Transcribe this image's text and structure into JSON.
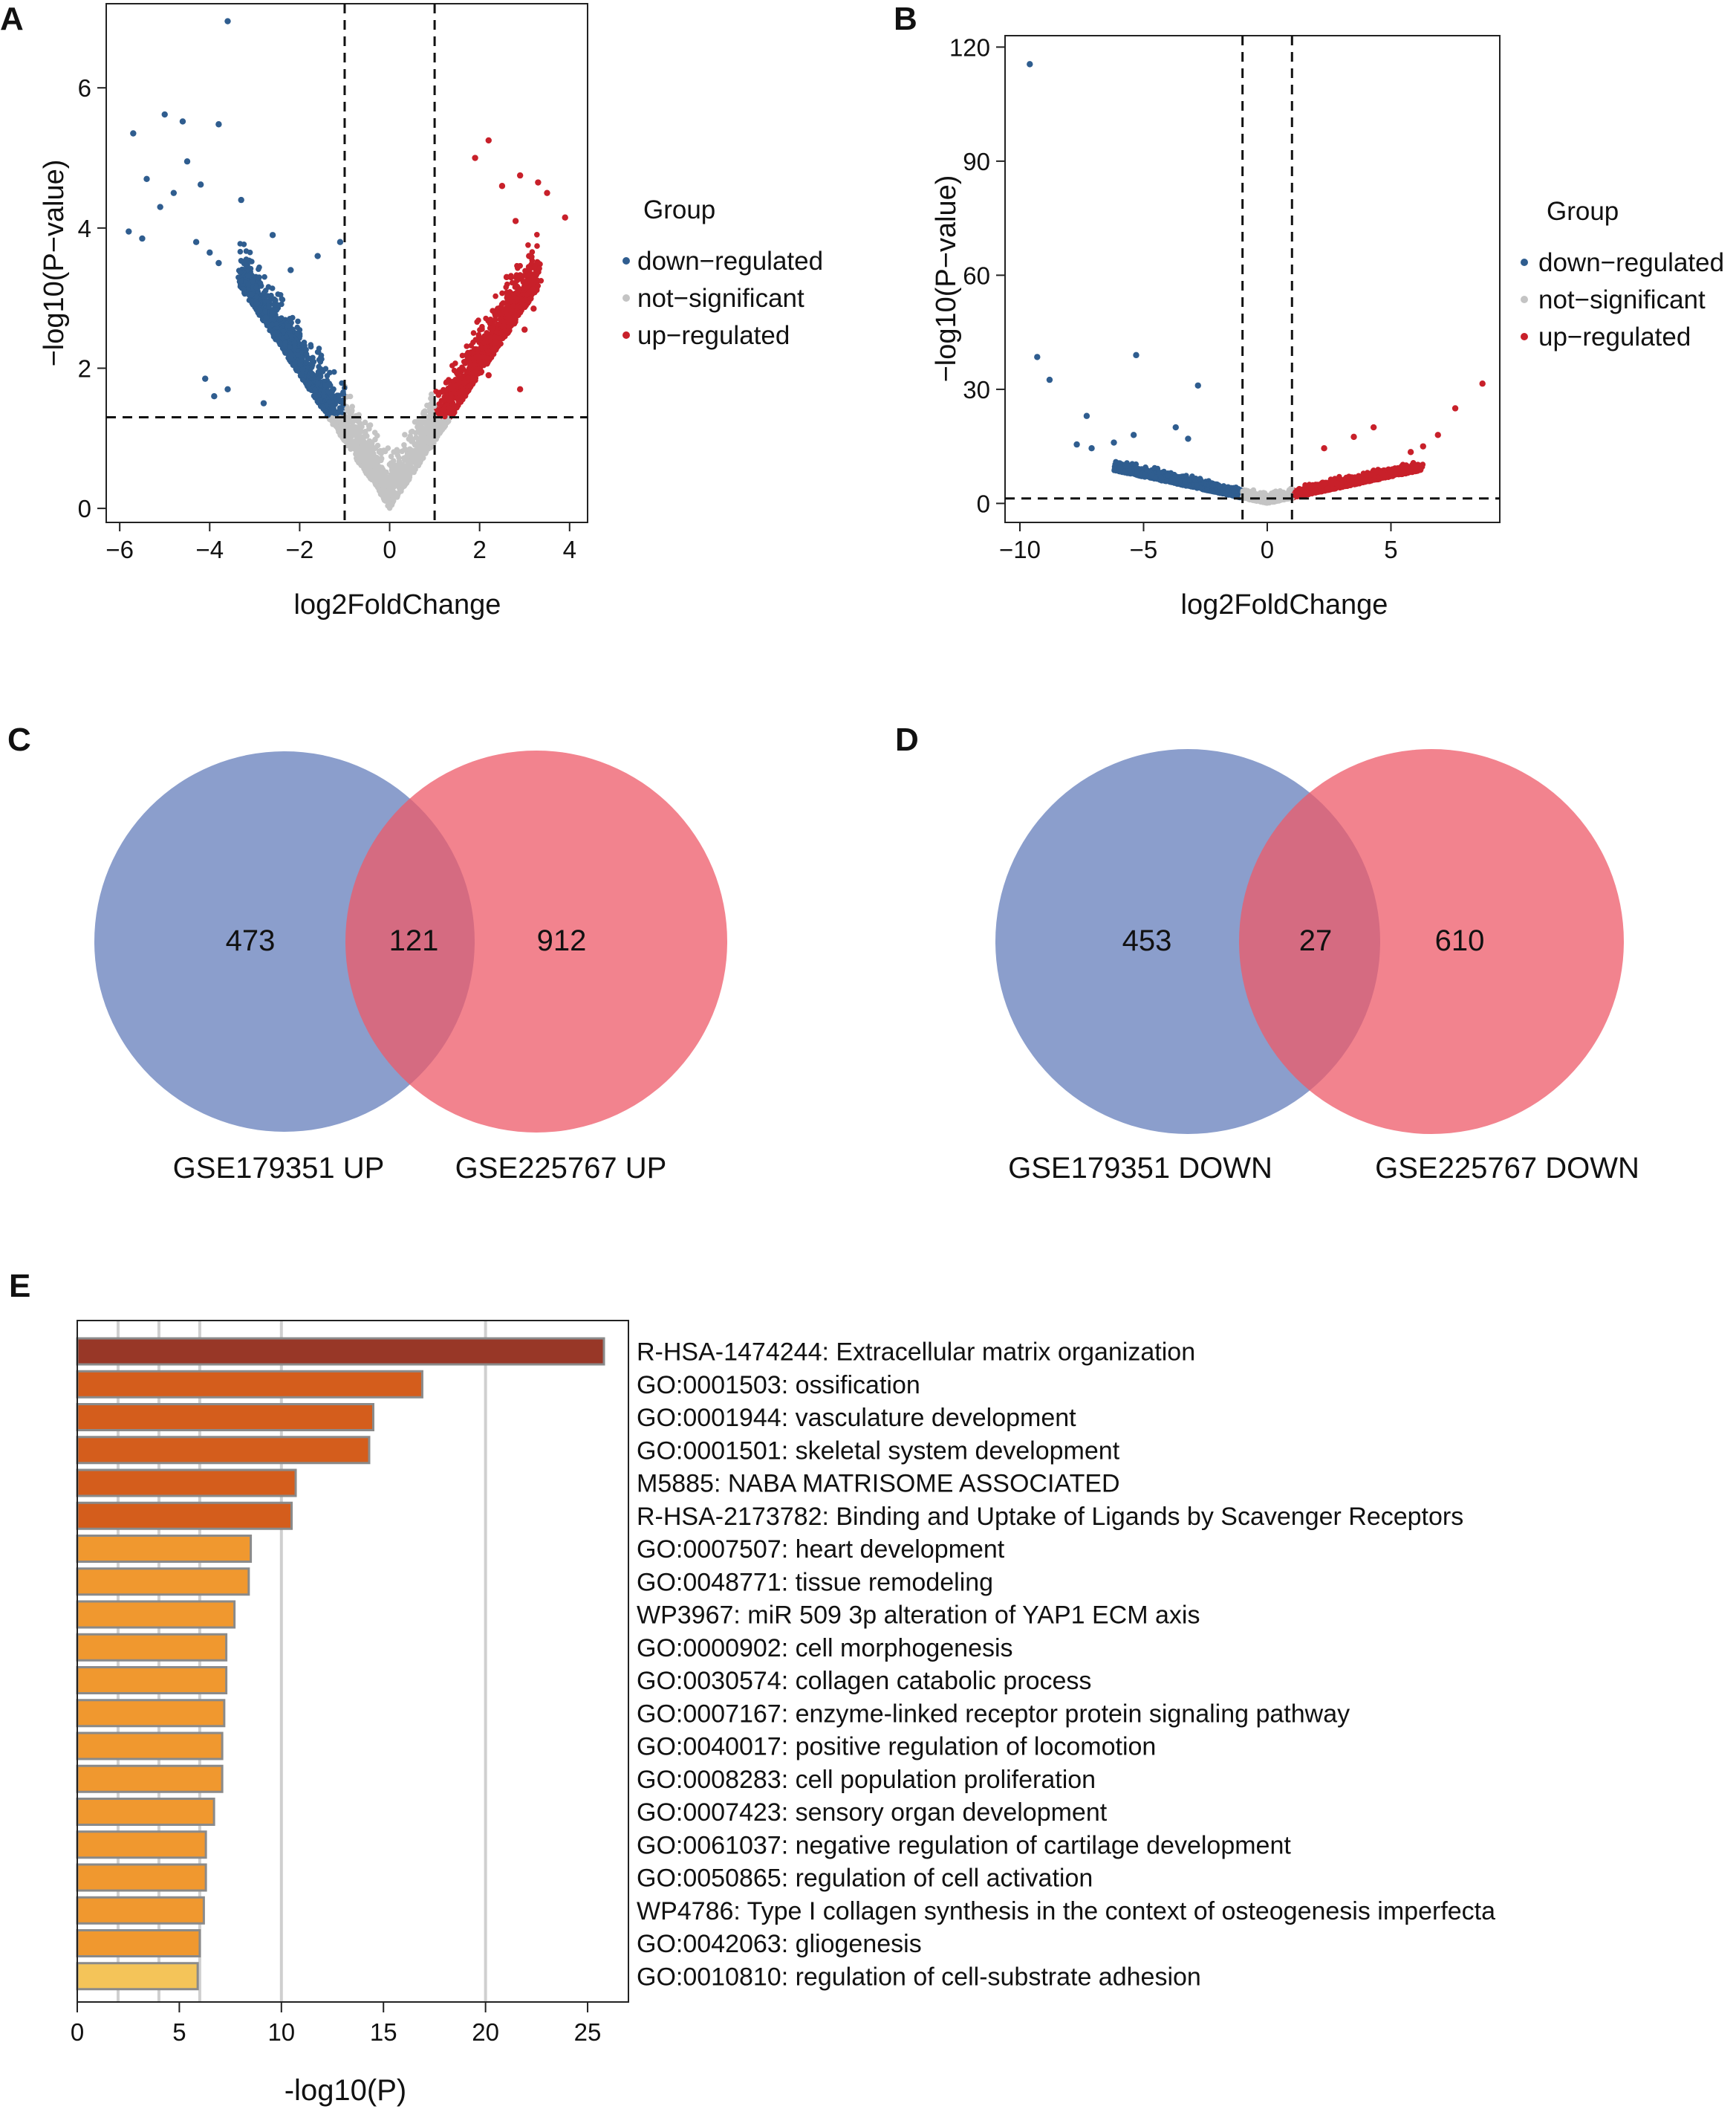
{
  "panels": {
    "A": {
      "letter": "A"
    },
    "B": {
      "letter": "B"
    },
    "C": {
      "letter": "C"
    },
    "D": {
      "letter": "D"
    },
    "E": {
      "letter": "E"
    }
  },
  "colors": {
    "down": "#2f5d8f",
    "not": "#c4c4c4",
    "up": "#c8202a",
    "venn_left": "#6e86bf",
    "venn_right": "#ee5a68",
    "bar_top": "#983727",
    "bar_mid": "#d45d1c",
    "bar_main": "#f0982f",
    "bar_last": "#f4c459",
    "bar_border": "#8a8a8a"
  },
  "chart_data": [
    {
      "id": "A",
      "type": "scatter",
      "title": "",
      "xlabel": "log2FoldChange",
      "ylabel": "−log10(P−value)",
      "xlim": [
        -6.3,
        4.4
      ],
      "ylim": [
        -0.2,
        7.2
      ],
      "xticks": [
        -6,
        -4,
        -2,
        0,
        2,
        4
      ],
      "xtick_labels": [
        "−6",
        "−4",
        "−2",
        "0",
        "2",
        "4"
      ],
      "yticks": [
        0,
        2,
        4,
        6
      ],
      "ytick_labels": [
        "0",
        "2",
        "4",
        "6"
      ],
      "thresholds": {
        "vlines": [
          -1,
          1
        ],
        "hline": 1.3
      },
      "legend": {
        "title": "Group",
        "entries": [
          "down−regulated",
          "not−significant",
          "up−regulated"
        ],
        "position": "right"
      },
      "series": [
        {
          "name": "down-regulated",
          "points": [
            [
              -3.6,
              6.95
            ],
            [
              -5.7,
              5.35
            ],
            [
              -5,
              5.62
            ],
            [
              -4.6,
              5.52
            ],
            [
              -3.8,
              5.48
            ],
            [
              -5.4,
              4.7
            ],
            [
              -4.5,
              4.95
            ],
            [
              -4.8,
              4.5
            ],
            [
              -4.2,
              4.62
            ],
            [
              -5.1,
              4.3
            ],
            [
              -5.8,
              3.95
            ],
            [
              -5.5,
              3.85
            ],
            [
              -3.3,
              4.4
            ],
            [
              -4.3,
              3.8
            ],
            [
              -4.0,
              3.65
            ],
            [
              -2.6,
              3.9
            ],
            [
              -3.8,
              3.5
            ],
            [
              -2.2,
              3.4
            ],
            [
              -1.6,
              3.6
            ],
            [
              -1.1,
              3.8
            ],
            [
              -4.1,
              1.85
            ],
            [
              -3.9,
              1.6
            ],
            [
              -3.6,
              1.7
            ],
            [
              -2.8,
              1.5
            ]
          ]
        },
        {
          "name": "not-significant",
          "points": []
        },
        {
          "name": "up-regulated",
          "points": [
            [
              2.2,
              5.25
            ],
            [
              1.9,
              5.0
            ],
            [
              2.5,
              4.6
            ],
            [
              2.9,
              4.75
            ],
            [
              3.3,
              4.65
            ],
            [
              3.9,
              4.15
            ],
            [
              3.5,
              4.5
            ],
            [
              2.8,
              4.1
            ],
            [
              3.1,
              3.6
            ],
            [
              2.6,
              3.3
            ],
            [
              3.2,
              2.85
            ],
            [
              3.0,
              2.55
            ],
            [
              2.9,
              1.7
            ],
            [
              2.2,
              1.9
            ]
          ]
        }
      ]
    },
    {
      "id": "B",
      "type": "scatter",
      "title": "",
      "xlabel": "log2FoldChange",
      "ylabel": "−log10(P−value)",
      "xlim": [
        -10.6,
        9.4
      ],
      "ylim": [
        -5,
        123
      ],
      "xticks": [
        -10,
        -5,
        0,
        5
      ],
      "xtick_labels": [
        "−10",
        "−5",
        "0",
        "5"
      ],
      "yticks": [
        0,
        30,
        60,
        90,
        120
      ],
      "ytick_labels": [
        "0",
        "30",
        "60",
        "90",
        "120"
      ],
      "thresholds": {
        "vlines": [
          -1,
          1
        ],
        "hline": 1.3
      },
      "legend": {
        "title": "Group",
        "entries": [
          "down−regulated",
          "not−significant",
          "up−regulated"
        ],
        "position": "right"
      },
      "series": [
        {
          "name": "down-regulated",
          "points": [
            [
              -9.6,
              115.5
            ],
            [
              -9.3,
              38.5
            ],
            [
              -8.8,
              32.5
            ],
            [
              -5.3,
              39
            ],
            [
              -2.8,
              31
            ],
            [
              -7.3,
              23
            ],
            [
              -7.7,
              15.5
            ],
            [
              -7.1,
              14.5
            ],
            [
              -6.2,
              16
            ],
            [
              -5.4,
              18
            ],
            [
              -3.7,
              20
            ],
            [
              -3.2,
              17
            ]
          ]
        },
        {
          "name": "not-significant",
          "points": []
        },
        {
          "name": "up-regulated",
          "points": [
            [
              8.7,
              31.5
            ],
            [
              7.6,
              25
            ],
            [
              6.9,
              18
            ],
            [
              6.3,
              15
            ],
            [
              5.8,
              13.5
            ],
            [
              4.3,
              20
            ],
            [
              3.5,
              17.5
            ],
            [
              2.3,
              14.5
            ]
          ]
        }
      ]
    },
    {
      "id": "C",
      "type": "venn",
      "sets": [
        "GSE179351 UP",
        "GSE225767 UP"
      ],
      "counts": {
        "left_only": 473,
        "both": 121,
        "right_only": 912
      }
    },
    {
      "id": "D",
      "type": "venn",
      "sets": [
        "GSE179351 DOWN",
        "GSE225767 DOWN"
      ],
      "counts": {
        "left_only": 453,
        "both": 27,
        "right_only": 610
      }
    },
    {
      "id": "E",
      "type": "bar",
      "orientation": "horizontal",
      "xlabel": "-log10(P)",
      "xlim": [
        0,
        27
      ],
      "xticks": [
        0,
        5,
        10,
        15,
        20,
        25
      ],
      "gridlines": [
        2,
        4,
        6,
        10,
        20
      ],
      "categories": [
        "R-HSA-1474244: Extracellular matrix organization",
        "GO:0001503: ossification",
        "GO:0001944: vasculature development",
        "GO:0001501: skeletal system development",
        "M5885: NABA MATRISOME ASSOCIATED",
        "R-HSA-2173782: Binding and Uptake of Ligands by Scavenger Receptors",
        "GO:0007507: heart development",
        "GO:0048771: tissue remodeling",
        "WP3967: miR 509 3p alteration of YAP1 ECM axis",
        "GO:0000902: cell morphogenesis",
        "GO:0030574: collagen catabolic process",
        "GO:0007167: enzyme-linked receptor protein signaling pathway",
        "GO:0040017: positive regulation of locomotion",
        "GO:0008283: cell population proliferation",
        "GO:0007423: sensory organ development",
        "GO:0061037: negative regulation of cartilage development",
        "GO:0050865: regulation of cell activation",
        "WP4786: Type I collagen synthesis in the context of osteogenesis imperfecta",
        "GO:0042063: gliogenesis",
        "GO:0010810: regulation of cell-substrate adhesion"
      ],
      "values": [
        25.8,
        16.9,
        14.5,
        14.3,
        10.7,
        10.5,
        8.5,
        8.4,
        7.7,
        7.3,
        7.3,
        7.2,
        7.1,
        7.1,
        6.7,
        6.3,
        6.3,
        6.2,
        6.0,
        5.9
      ],
      "color_groups": [
        "top",
        "mid",
        "mid",
        "mid",
        "mid",
        "mid",
        "main",
        "main",
        "main",
        "main",
        "main",
        "main",
        "main",
        "main",
        "main",
        "main",
        "main",
        "main",
        "main",
        "last"
      ]
    }
  ]
}
